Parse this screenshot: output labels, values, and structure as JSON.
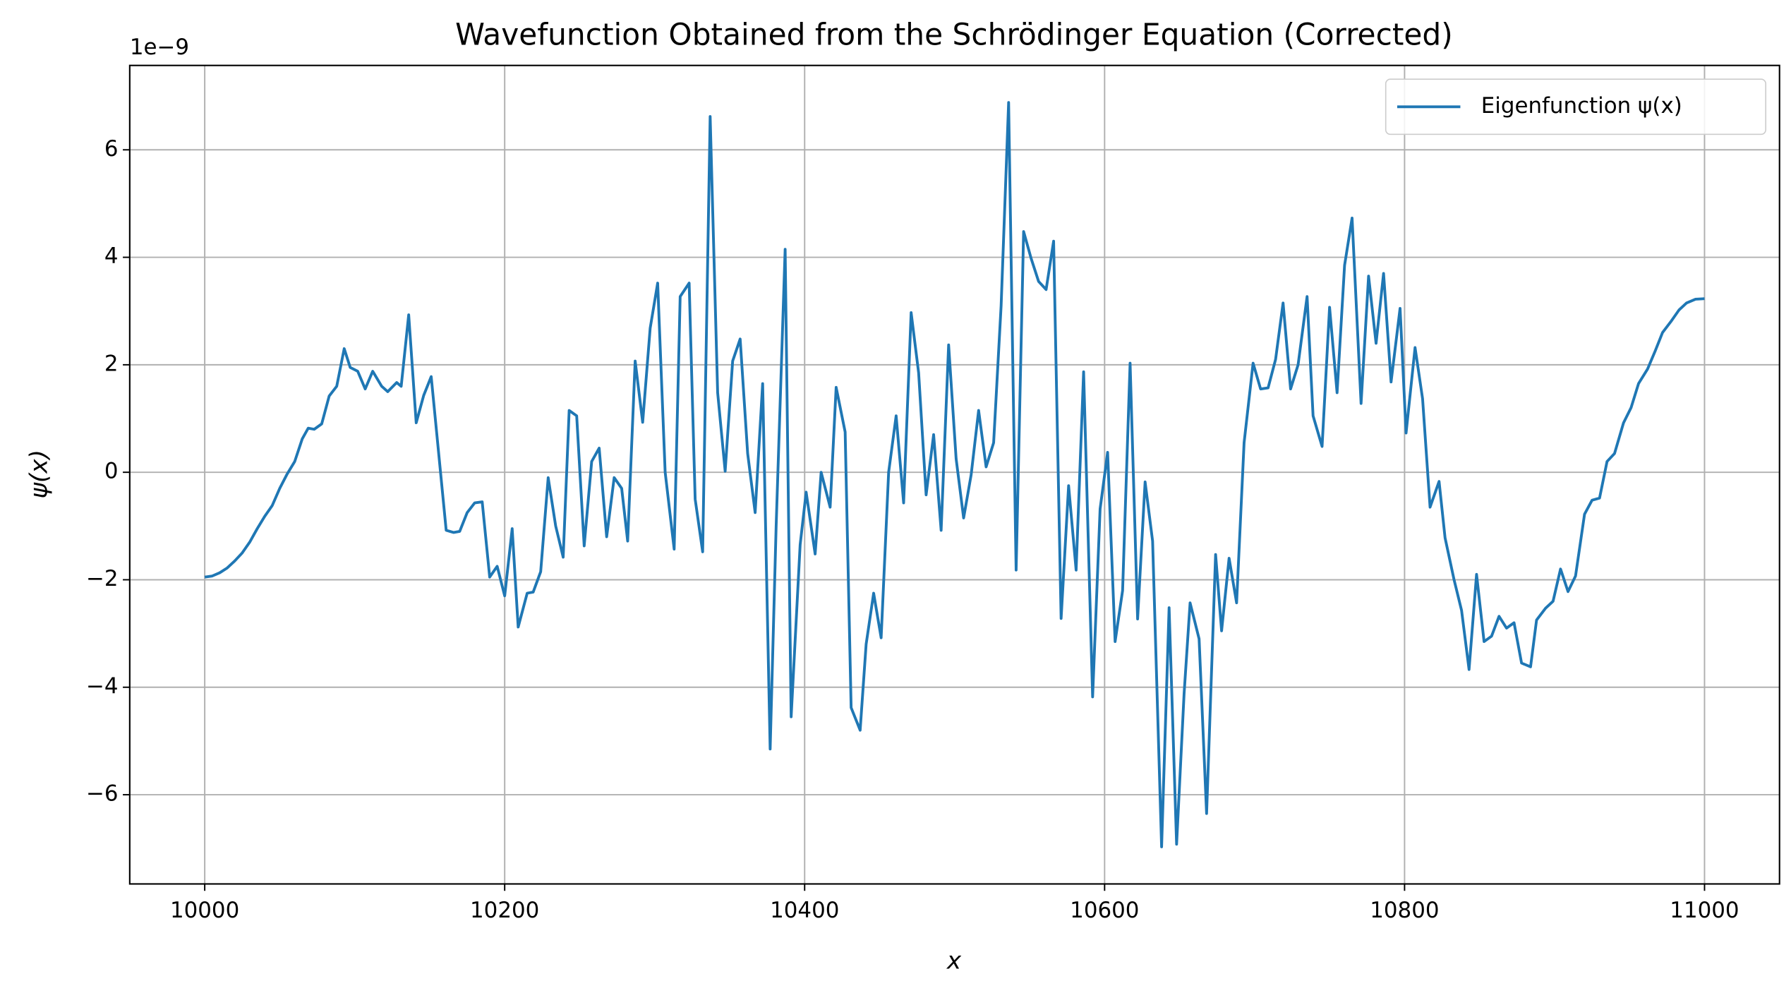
{
  "chart_data": {
    "type": "line",
    "title": "Wavefunction Obtained from the Schrödinger Equation (Corrected)",
    "x_label": "x",
    "y_label": "ψ(x)",
    "y_offset_label": "1e−9",
    "grid": true,
    "legend": "upper right",
    "xlim": [
      9950,
      11050
    ],
    "ylim": [
      -7.66,
      7.57
    ],
    "xticks": [
      10000,
      10200,
      10400,
      10600,
      10800,
      11000
    ],
    "yticks": [
      {
        "value": -6,
        "label": "−6"
      },
      {
        "value": -4,
        "label": "−4"
      },
      {
        "value": -2,
        "label": "−2"
      },
      0,
      2,
      4,
      6
    ],
    "x": [
      10000,
      10005,
      10010,
      10015,
      10020,
      10025,
      10030,
      10035,
      10040,
      10045,
      10050,
      10055,
      10060,
      10065,
      10069,
      10073,
      10078,
      10083,
      10088,
      10093,
      10097,
      10102,
      10107,
      10112,
      10118,
      10122,
      10128,
      10131,
      10136,
      10141,
      10146,
      10151,
      10156,
      10161,
      10166,
      10170,
      10175,
      10180,
      10185,
      10190,
      10195,
      10200,
      10205,
      10209,
      10215,
      10219,
      10224,
      10229,
      10234,
      10239,
      10243,
      10248,
      10253,
      10258,
      10263,
      10268,
      10273,
      10278,
      10282,
      10287,
      10292,
      10297,
      10302,
      10307,
      10313,
      10317,
      10323,
      10327,
      10332,
      10337,
      10342,
      10347,
      10352,
      10357,
      10362,
      10367,
      10372,
      10377,
      10381,
      10387,
      10391,
      10397,
      10401,
      10407,
      10411,
      10417,
      10421,
      10427,
      10431,
      10437,
      10441,
      10446,
      10451,
      10456,
      10461,
      10466,
      10471,
      10476,
      10481,
      10486,
      10491,
      10496,
      10501,
      10506,
      10511,
      10516,
      10521,
      10526,
      10531,
      10536,
      10541,
      10546,
      10551,
      10556,
      10561,
      10566,
      10571,
      10576,
      10581,
      10586,
      10592,
      10597,
      10602,
      10607,
      10612,
      10617,
      10622,
      10627,
      10632,
      10638,
      10643,
      10648,
      10653,
      10657,
      10663,
      10668,
      10674,
      10678,
      10683,
      10688,
      10693,
      10699,
      10704,
      10709,
      10714,
      10719,
      10724,
      10729,
      10735,
      10739,
      10745,
      10750,
      10755,
      10760,
      10765,
      10771,
      10776,
      10781,
      10786,
      10791,
      10797,
      10801,
      10807,
      10812,
      10817,
      10823,
      10827,
      10833,
      10838,
      10843,
      10848,
      10853,
      10858,
      10863,
      10868,
      10873,
      10878,
      10884,
      10888,
      10894,
      10899,
      10904,
      10909,
      10914,
      10920,
      10925,
      10930,
      10935,
      10940,
      10946,
      10951,
      10956,
      10962,
      10967,
      10972,
      10978,
      10983,
      10988,
      10994,
      11000
    ],
    "series": [
      {
        "name": "Eigenfunction ψ(x)",
        "color": "#1f77b4",
        "values": [
          -1.95,
          -1.93,
          -1.87,
          -1.78,
          -1.65,
          -1.5,
          -1.3,
          -1.05,
          -0.82,
          -0.62,
          -0.3,
          -0.03,
          0.2,
          0.62,
          0.82,
          0.8,
          0.9,
          1.42,
          1.6,
          2.3,
          1.95,
          1.88,
          1.55,
          1.88,
          1.6,
          1.5,
          1.67,
          1.6,
          2.93,
          0.92,
          1.43,
          1.78,
          0.35,
          -1.08,
          -1.12,
          -1.1,
          -0.75,
          -0.57,
          -0.55,
          -1.95,
          -1.75,
          -2.3,
          -1.05,
          -2.88,
          -2.25,
          -2.23,
          -1.85,
          -0.1,
          -1.0,
          -1.58,
          1.15,
          1.05,
          -1.37,
          0.2,
          0.45,
          -1.2,
          -0.1,
          -0.3,
          -1.28,
          2.07,
          0.93,
          2.68,
          3.52,
          0.0,
          -1.43,
          3.27,
          3.52,
          -0.5,
          -1.48,
          6.62,
          1.48,
          0.02,
          2.07,
          2.48,
          0.35,
          -0.75,
          1.65,
          -5.15,
          -1.0,
          4.15,
          -4.55,
          -1.35,
          -0.37,
          -1.52,
          0.0,
          -0.65,
          1.58,
          0.75,
          -4.38,
          -4.8,
          -3.2,
          -2.25,
          -3.08,
          0.0,
          1.05,
          -0.57,
          2.97,
          1.85,
          -0.42,
          0.7,
          -1.08,
          2.37,
          0.25,
          -0.85,
          -0.05,
          1.15,
          0.1,
          0.55,
          3.1,
          6.88,
          -1.82,
          4.48,
          3.98,
          3.55,
          3.4,
          4.3,
          -2.72,
          -0.25,
          -1.82,
          1.87,
          -4.18,
          -0.68,
          0.37,
          -3.15,
          -2.2,
          2.03,
          -2.73,
          -0.18,
          -1.28,
          -6.97,
          -2.52,
          -6.92,
          -4.12,
          -2.43,
          -3.1,
          -6.35,
          -1.53,
          -2.95,
          -1.6,
          -2.43,
          0.55,
          2.03,
          1.55,
          1.57,
          2.1,
          3.15,
          1.55,
          2.0,
          3.27,
          1.05,
          0.48,
          3.07,
          1.48,
          3.85,
          4.73,
          1.28,
          3.65,
          2.4,
          3.7,
          1.68,
          3.05,
          0.73,
          2.32,
          1.37,
          -0.65,
          -0.17,
          -1.22,
          -2.0,
          -2.57,
          -3.67,
          -1.9,
          -3.15,
          -3.05,
          -2.68,
          -2.9,
          -2.8,
          -3.55,
          -3.62,
          -2.75,
          -2.53,
          -2.4,
          -1.8,
          -2.22,
          -1.93,
          -0.78,
          -0.52,
          -0.48,
          0.2,
          0.35,
          0.92,
          1.2,
          1.65,
          1.92,
          2.25,
          2.6,
          2.82,
          3.02,
          3.15,
          3.22,
          3.23
        ]
      }
    ]
  }
}
